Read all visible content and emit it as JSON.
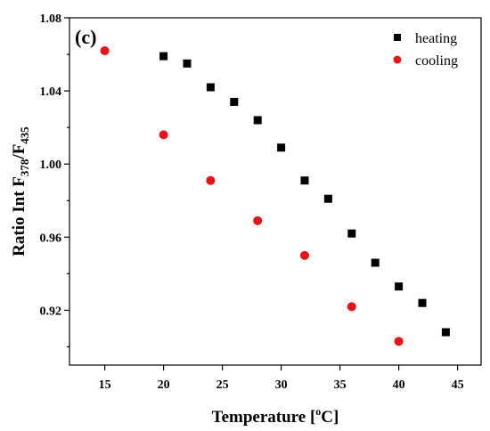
{
  "chart_data": {
    "type": "scatter",
    "panel_label": "(c)",
    "xlabel": "Temperature [",
    "xlabel_sup": "o",
    "xlabel_end": "C]",
    "ylabel_prefix": "Ratio Int F",
    "ylabel_sub1": "378",
    "ylabel_mid": "/F",
    "ylabel_sub2": "435",
    "xlim": [
      12,
      47
    ],
    "ylim": [
      0.89,
      1.08
    ],
    "x_ticks": [
      15,
      20,
      25,
      30,
      35,
      40,
      45
    ],
    "x_tick_labels": [
      "15",
      "20",
      "25",
      "30",
      "35",
      "40",
      "45"
    ],
    "y_ticks": [
      0.92,
      0.96,
      1.0,
      1.04,
      1.08
    ],
    "y_tick_labels": [
      "0.92",
      "0.96",
      "1.00",
      "1.04",
      "1.08"
    ],
    "legend_position": "top-right",
    "grid": false,
    "series": [
      {
        "name": "heating",
        "marker": "square",
        "color": "#000000",
        "x": [
          20,
          22,
          24,
          26,
          28,
          30,
          32,
          34,
          36,
          38,
          40,
          42,
          44
        ],
        "y": [
          1.059,
          1.055,
          1.042,
          1.034,
          1.024,
          1.009,
          0.991,
          0.981,
          0.962,
          0.946,
          0.933,
          0.924,
          0.908
        ]
      },
      {
        "name": "cooling",
        "marker": "circle",
        "color": "#e8121a",
        "x": [
          15,
          20,
          24,
          28,
          32,
          36,
          40
        ],
        "y": [
          1.062,
          1.016,
          0.991,
          0.969,
          0.95,
          0.922,
          0.903
        ]
      }
    ]
  }
}
